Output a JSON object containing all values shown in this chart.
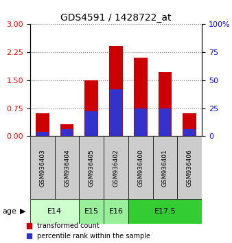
{
  "title": "GDS4591 / 1428722_at",
  "samples": [
    "GSM936403",
    "GSM936404",
    "GSM936405",
    "GSM936402",
    "GSM936400",
    "GSM936401",
    "GSM936406"
  ],
  "transformed_count": [
    0.62,
    0.32,
    1.5,
    2.42,
    2.1,
    1.72,
    0.62
  ],
  "percentile_rank_pct": [
    4,
    6,
    22,
    42,
    25,
    25,
    6
  ],
  "age_groups": [
    {
      "label": "E14",
      "cols": [
        0,
        1
      ],
      "color": "#ccffcc"
    },
    {
      "label": "E15",
      "cols": [
        2
      ],
      "color": "#99ee99"
    },
    {
      "label": "E16",
      "cols": [
        3
      ],
      "color": "#99ee99"
    },
    {
      "label": "E17.5",
      "cols": [
        4,
        5,
        6
      ],
      "color": "#33cc33"
    }
  ],
  "ylim_left": [
    0,
    3
  ],
  "ylim_right": [
    0,
    100
  ],
  "yticks_left": [
    0,
    0.75,
    1.5,
    2.25,
    3
  ],
  "yticks_right": [
    0,
    25,
    50,
    75,
    100
  ],
  "bar_color_red": "#cc0000",
  "bar_color_blue": "#3333cc",
  "bar_width": 0.55,
  "background_color": "#ffffff",
  "sample_box_color": "#cccccc",
  "legend_red": "transformed count",
  "legend_blue": "percentile rank within the sample"
}
